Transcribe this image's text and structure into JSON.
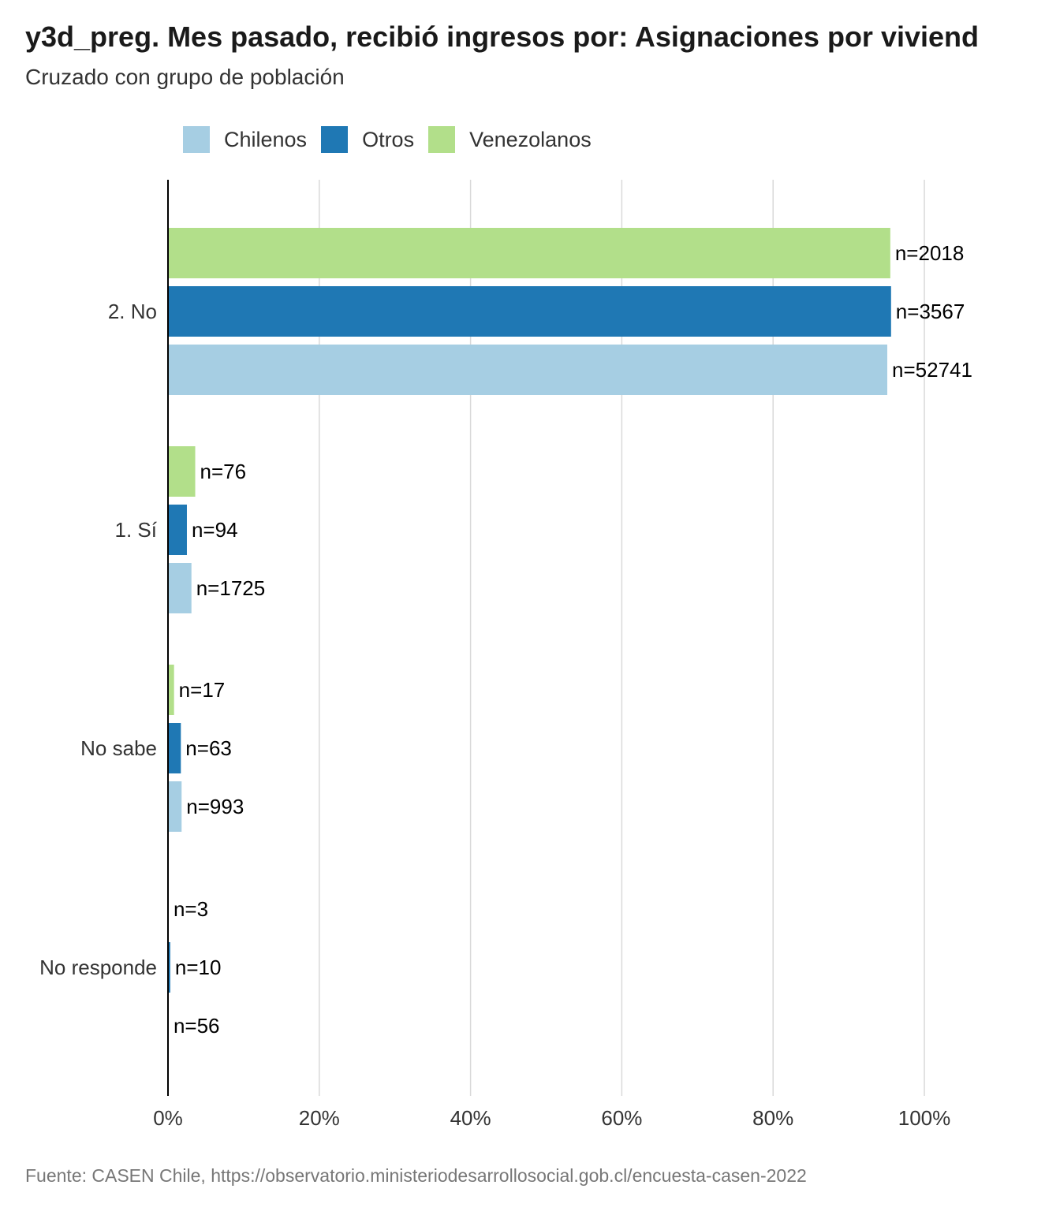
{
  "chart_data": {
    "type": "bar",
    "orientation": "horizontal",
    "title": "y3d_preg. Mes pasado, recibió ingresos por: Asignaciones por viviend",
    "subtitle": "Cruzado con grupo de población",
    "caption": "Fuente: CASEN Chile, https://observatorio.ministeriodesarrollosocial.gob.cl/encuesta-casen-2022",
    "categories": [
      "2. No",
      "1. Sí",
      "No sabe",
      "No responde"
    ],
    "xlim": [
      0,
      100
    ],
    "x_ticks": [
      "0%",
      "20%",
      "40%",
      "60%",
      "80%",
      "100%"
    ],
    "grid": true,
    "legend_position": "top",
    "series": [
      {
        "name": "Chilenos",
        "color": "#a6cee3",
        "values": [
          95.1,
          3.1,
          1.8,
          0.1
        ],
        "labels": [
          "n=52741",
          "n=1725",
          "n=993",
          "n=56"
        ]
      },
      {
        "name": "Otros",
        "color": "#1f78b4",
        "values": [
          95.6,
          2.5,
          1.7,
          0.3
        ],
        "labels": [
          "n=3567",
          "n=94",
          "n=63",
          "n=10"
        ]
      },
      {
        "name": "Venezolanos",
        "color": "#b2df8a",
        "values": [
          95.5,
          3.6,
          0.8,
          0.1
        ],
        "labels": [
          "n=2018",
          "n=76",
          "n=17",
          "n=3"
        ]
      }
    ]
  }
}
